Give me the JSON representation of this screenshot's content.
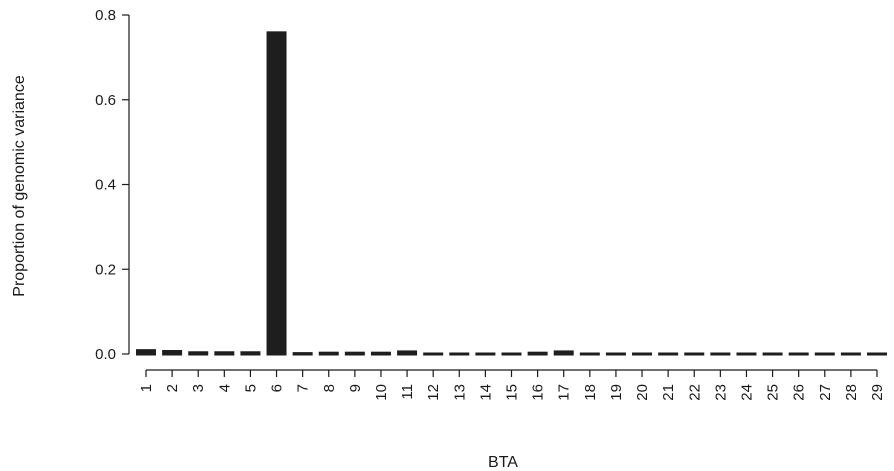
{
  "chart_data": {
    "type": "bar",
    "title": "",
    "xlabel": "BTA",
    "ylabel": "Proportion of genomic variance",
    "ylim": [
      0,
      0.8
    ],
    "yticks": [
      "0.0",
      "0.2",
      "0.4",
      "0.6",
      "0.8"
    ],
    "categories": [
      "1",
      "2",
      "3",
      "4",
      "5",
      "6",
      "7",
      "8",
      "9",
      "10",
      "11",
      "12",
      "13",
      "14",
      "15",
      "16",
      "17",
      "18",
      "19",
      "20",
      "21",
      "22",
      "23",
      "24",
      "25",
      "26",
      "27",
      "28",
      "29"
    ],
    "values": [
      0.015,
      0.013,
      0.01,
      0.01,
      0.01,
      0.765,
      0.008,
      0.009,
      0.009,
      0.009,
      0.012,
      0.005,
      0.005,
      0.007,
      0.007,
      0.009,
      0.012,
      0.005,
      0.005,
      0.005,
      0.005,
      0.007,
      0.007,
      0.007,
      0.005,
      0.005,
      0.003,
      0.003,
      0.004
    ],
    "bar_color": "#1e1e1e",
    "grid": false,
    "legend": "none"
  }
}
